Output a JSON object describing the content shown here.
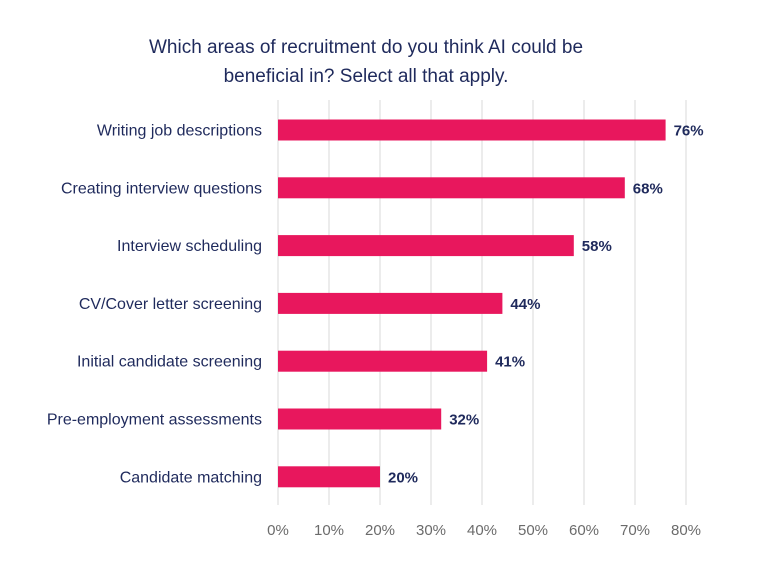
{
  "chart_data": {
    "type": "bar",
    "orientation": "horizontal",
    "title_lines": [
      "Which areas of recruitment do you think AI could be",
      "beneficial in? Select all that apply."
    ],
    "categories": [
      "Writing job descriptions",
      "Creating interview questions",
      "Interview scheduling",
      "CV/Cover letter screening",
      "Initial candidate screening",
      "Pre-employment assessments",
      "Candidate matching"
    ],
    "values": [
      76,
      68,
      58,
      44,
      41,
      32,
      20
    ],
    "value_labels": [
      "76%",
      "68%",
      "58%",
      "44%",
      "41%",
      "32%",
      "20%"
    ],
    "xlim": [
      0,
      80
    ],
    "x_ticks": [
      0,
      10,
      20,
      30,
      40,
      50,
      60,
      70,
      80
    ],
    "x_tick_labels": [
      "0%",
      "10%",
      "20%",
      "30%",
      "40%",
      "50%",
      "60%",
      "70%",
      "80%"
    ],
    "grid": true,
    "legend": "none",
    "bar_color": "#e8175d",
    "text_color": "#1f2a5c",
    "tick_color": "#6b6b6b",
    "grid_color": "#d9d9d9"
  }
}
